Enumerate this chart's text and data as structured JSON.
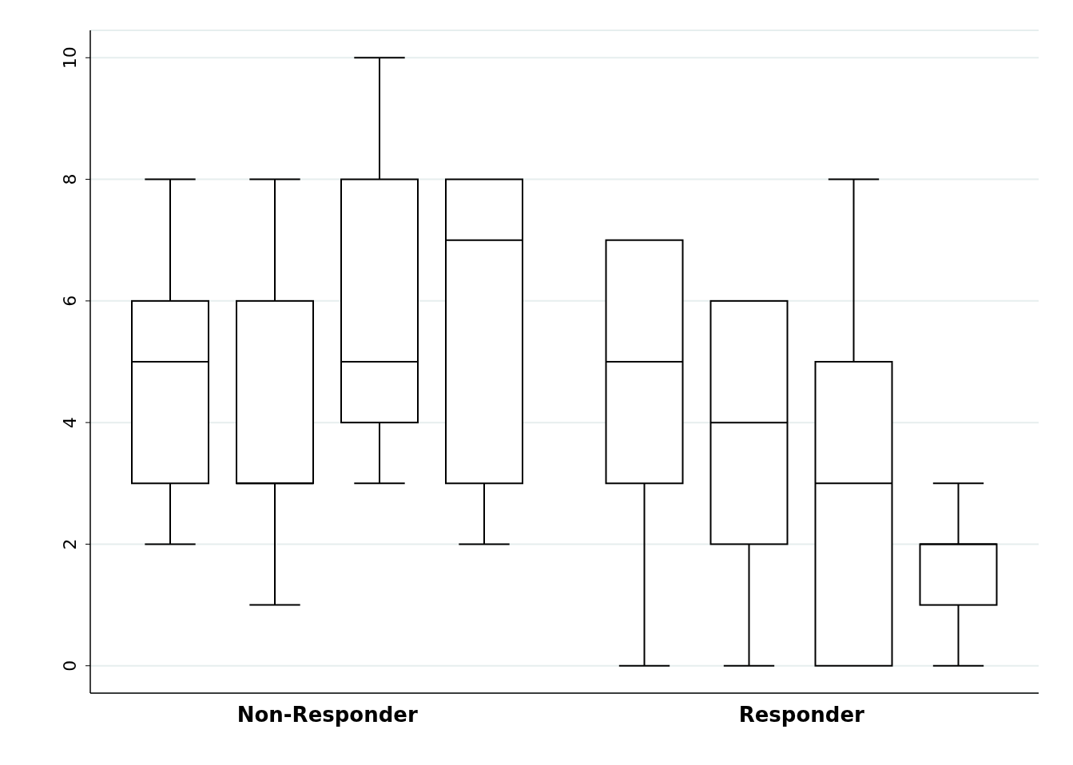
{
  "chart_data": {
    "type": "box",
    "categories": [
      "Non-Responder",
      "Responder"
    ],
    "ylim": [
      -0.45,
      10.45
    ],
    "yticks": [
      0,
      2,
      4,
      6,
      8,
      10
    ],
    "grid": "y",
    "series": [
      {
        "color": "#000000",
        "boxes": [
          {
            "low": 2,
            "q1": 3,
            "median": 5,
            "q3": 6,
            "high": 8
          },
          {
            "low": 0,
            "q1": 3,
            "median": 5,
            "q3": 7,
            "high": 7
          }
        ]
      },
      {
        "color": "#000000",
        "boxes": [
          {
            "low": 1,
            "q1": 3,
            "median": 3,
            "q3": 6,
            "high": 8
          },
          {
            "low": 0,
            "q1": 2,
            "median": 4,
            "q3": 6,
            "high": 6
          }
        ]
      },
      {
        "color": "#000000",
        "boxes": [
          {
            "low": 3,
            "q1": 4,
            "median": 5,
            "q3": 8,
            "high": 10
          },
          {
            "low": 0,
            "q1": 0,
            "median": 3,
            "q3": 5,
            "high": 8
          }
        ]
      },
      {
        "color": "#000000",
        "boxes": [
          {
            "low": 2,
            "q1": 3,
            "median": 7,
            "q3": 8,
            "high": 8
          },
          {
            "low": 0,
            "q1": 1,
            "median": 2,
            "q3": 2,
            "high": 3
          }
        ]
      }
    ]
  }
}
